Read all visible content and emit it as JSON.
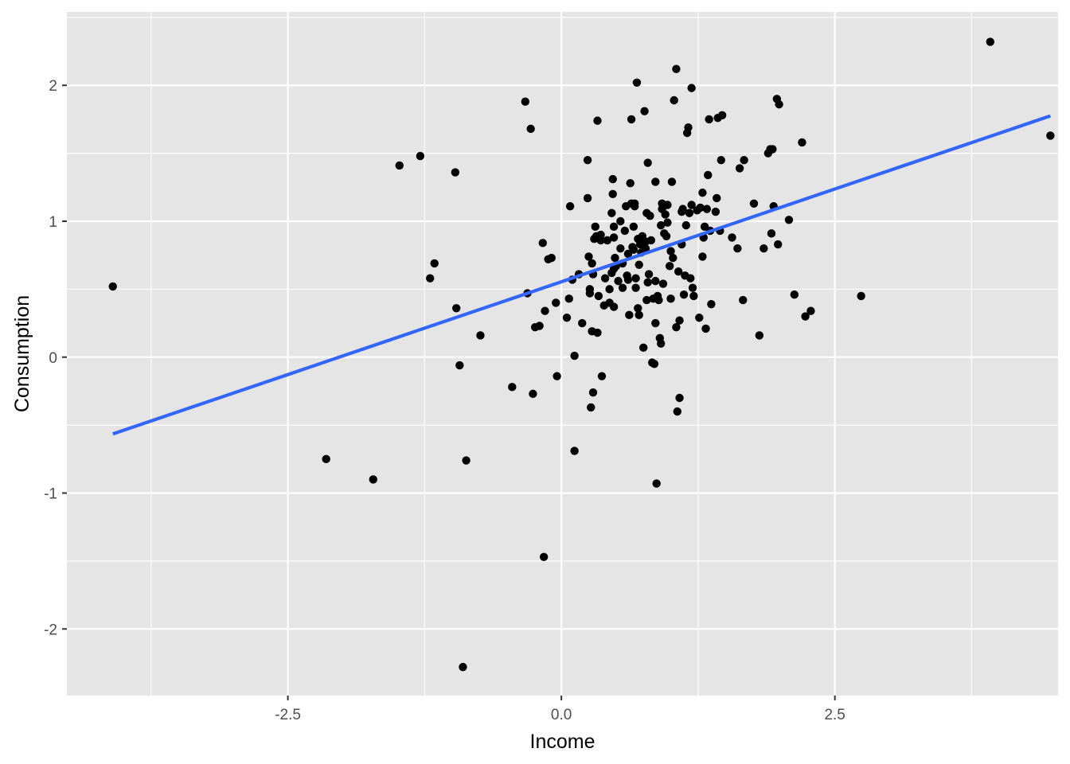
{
  "chart_data": {
    "type": "scatter",
    "title": "",
    "xlabel": "Income",
    "ylabel": "Consumption",
    "xlim": [
      -4.52,
      4.54
    ],
    "ylim": [
      -2.49,
      2.54
    ],
    "x_ticks": [
      -2.5,
      0.0,
      2.5
    ],
    "x_tick_labels": [
      "-2.5",
      "0.0",
      "2.5"
    ],
    "y_ticks": [
      -2,
      -1,
      0,
      1,
      2
    ],
    "y_tick_labels": [
      "-2",
      "-1",
      "0",
      "1",
      "2"
    ],
    "grid": true,
    "legend": "none",
    "colors": {
      "panel": "#e5e5e5",
      "grid": "#ffffff",
      "points": "#000000",
      "fit_line": "#3366ff"
    },
    "fit_line": {
      "x": [
        -4.1,
        4.47
      ],
      "y": [
        -0.565,
        1.775
      ]
    },
    "points": [
      [
        -4.1,
        0.52
      ],
      [
        -2.15,
        -0.75
      ],
      [
        -1.72,
        -0.9
      ],
      [
        -1.48,
        1.41
      ],
      [
        -1.29,
        1.48
      ],
      [
        -1.2,
        0.58
      ],
      [
        -1.16,
        0.69
      ],
      [
        -0.97,
        1.36
      ],
      [
        -0.96,
        0.36
      ],
      [
        -0.93,
        -0.06
      ],
      [
        -0.9,
        -2.28
      ],
      [
        -0.87,
        -0.76
      ],
      [
        -0.74,
        0.16
      ],
      [
        -0.45,
        -0.22
      ],
      [
        -0.33,
        1.88
      ],
      [
        -0.31,
        0.47
      ],
      [
        -0.28,
        1.68
      ],
      [
        -0.26,
        -0.27
      ],
      [
        -0.24,
        0.22
      ],
      [
        -0.2,
        0.23
      ],
      [
        -0.17,
        0.84
      ],
      [
        -0.16,
        -1.47
      ],
      [
        -0.15,
        0.34
      ],
      [
        -0.12,
        0.72
      ],
      [
        -0.09,
        0.73
      ],
      [
        -0.05,
        0.4
      ],
      [
        -0.04,
        -0.14
      ],
      [
        0.05,
        0.29
      ],
      [
        0.07,
        0.43
      ],
      [
        0.08,
        1.11
      ],
      [
        0.1,
        0.57
      ],
      [
        0.12,
        0.01
      ],
      [
        0.12,
        -0.69
      ],
      [
        0.16,
        0.61
      ],
      [
        0.19,
        0.25
      ],
      [
        0.24,
        1.17
      ],
      [
        0.24,
        1.45
      ],
      [
        0.25,
        0.74
      ],
      [
        0.26,
        0.5
      ],
      [
        0.26,
        0.47
      ],
      [
        0.27,
        -0.37
      ],
      [
        0.28,
        0.19
      ],
      [
        0.28,
        0.69
      ],
      [
        0.29,
        -0.26
      ],
      [
        0.29,
        0.61
      ],
      [
        0.3,
        0.87
      ],
      [
        0.31,
        0.96
      ],
      [
        0.32,
        0.89
      ],
      [
        0.33,
        0.18
      ],
      [
        0.33,
        1.74
      ],
      [
        0.34,
        0.45
      ],
      [
        0.36,
        0.86
      ],
      [
        0.36,
        0.9
      ],
      [
        0.37,
        -0.14
      ],
      [
        0.39,
        0.38
      ],
      [
        0.4,
        0.58
      ],
      [
        0.42,
        0.86
      ],
      [
        0.44,
        0.5
      ],
      [
        0.44,
        0.4
      ],
      [
        0.46,
        0.62
      ],
      [
        0.46,
        1.06
      ],
      [
        0.47,
        1.31
      ],
      [
        0.47,
        1.2
      ],
      [
        0.48,
        0.37
      ],
      [
        0.48,
        0.65
      ],
      [
        0.48,
        0.88
      ],
      [
        0.48,
        0.96
      ],
      [
        0.49,
        0.73
      ],
      [
        0.5,
        0.67
      ],
      [
        0.52,
        0.56
      ],
      [
        0.54,
        1.0
      ],
      [
        0.54,
        0.8
      ],
      [
        0.56,
        0.69
      ],
      [
        0.56,
        0.51
      ],
      [
        0.58,
        0.93
      ],
      [
        0.59,
        1.11
      ],
      [
        0.6,
        0.6
      ],
      [
        0.61,
        0.76
      ],
      [
        0.61,
        0.57
      ],
      [
        0.62,
        0.31
      ],
      [
        0.63,
        1.28
      ],
      [
        0.64,
        1.75
      ],
      [
        0.64,
        1.13
      ],
      [
        0.65,
        0.81
      ],
      [
        0.66,
        0.79
      ],
      [
        0.66,
        0.96
      ],
      [
        0.67,
        1.11
      ],
      [
        0.67,
        1.13
      ],
      [
        0.68,
        0.58
      ],
      [
        0.68,
        0.51
      ],
      [
        0.69,
        2.02
      ],
      [
        0.7,
        0.87
      ],
      [
        0.7,
        0.36
      ],
      [
        0.71,
        0.68
      ],
      [
        0.71,
        0.31
      ],
      [
        0.72,
        0.83
      ],
      [
        0.73,
        0.77
      ],
      [
        0.74,
        0.89
      ],
      [
        0.75,
        0.07
      ],
      [
        0.76,
        1.81
      ],
      [
        0.77,
        0.85
      ],
      [
        0.77,
        0.8
      ],
      [
        0.78,
        1.06
      ],
      [
        0.78,
        0.42
      ],
      [
        0.79,
        1.43
      ],
      [
        0.79,
        0.55
      ],
      [
        0.8,
        0.61
      ],
      [
        0.81,
        1.04
      ],
      [
        0.82,
        0.86
      ],
      [
        0.83,
        -0.04
      ],
      [
        0.84,
        0.43
      ],
      [
        0.85,
        -0.05
      ],
      [
        0.86,
        0.56
      ],
      [
        0.86,
        0.25
      ],
      [
        0.86,
        1.29
      ],
      [
        0.87,
        -0.93
      ],
      [
        0.88,
        0.45
      ],
      [
        0.89,
        0.42
      ],
      [
        0.9,
        0.14
      ],
      [
        0.91,
        0.1
      ],
      [
        0.91,
        0.97
      ],
      [
        0.92,
        1.09
      ],
      [
        0.92,
        1.13
      ],
      [
        0.93,
        0.54
      ],
      [
        0.94,
        0.91
      ],
      [
        0.95,
        1.05
      ],
      [
        0.96,
        0.89
      ],
      [
        0.97,
        0.99
      ],
      [
        0.97,
        1.12
      ],
      [
        0.99,
        0.67
      ],
      [
        1.0,
        0.78
      ],
      [
        1.0,
        0.43
      ],
      [
        1.01,
        1.29
      ],
      [
        1.02,
        0.73
      ],
      [
        1.03,
        1.89
      ],
      [
        1.05,
        0.22
      ],
      [
        1.05,
        2.12
      ],
      [
        1.06,
        -0.4
      ],
      [
        1.07,
        0.63
      ],
      [
        1.08,
        0.27
      ],
      [
        1.08,
        -0.3
      ],
      [
        1.1,
        1.07
      ],
      [
        1.1,
        0.83
      ],
      [
        1.11,
        1.09
      ],
      [
        1.12,
        0.46
      ],
      [
        1.13,
        0.6
      ],
      [
        1.14,
        0.97
      ],
      [
        1.15,
        1.65
      ],
      [
        1.16,
        1.69
      ],
      [
        1.17,
        1.06
      ],
      [
        1.18,
        0.58
      ],
      [
        1.19,
        1.12
      ],
      [
        1.19,
        1.98
      ],
      [
        1.2,
        0.51
      ],
      [
        1.21,
        0.45
      ],
      [
        1.24,
        1.08
      ],
      [
        1.26,
        0.29
      ],
      [
        1.27,
        1.1
      ],
      [
        1.29,
        1.21
      ],
      [
        1.29,
        0.74
      ],
      [
        1.3,
        0.88
      ],
      [
        1.31,
        0.96
      ],
      [
        1.32,
        0.21
      ],
      [
        1.33,
        1.09
      ],
      [
        1.34,
        1.34
      ],
      [
        1.35,
        1.75
      ],
      [
        1.36,
        0.93
      ],
      [
        1.37,
        0.39
      ],
      [
        1.41,
        1.07
      ],
      [
        1.42,
        1.17
      ],
      [
        1.43,
        1.76
      ],
      [
        1.45,
        0.93
      ],
      [
        1.46,
        1.45
      ],
      [
        1.47,
        1.78
      ],
      [
        1.56,
        0.88
      ],
      [
        1.61,
        0.8
      ],
      [
        1.63,
        1.39
      ],
      [
        1.66,
        0.42
      ],
      [
        1.67,
        1.45
      ],
      [
        1.76,
        1.13
      ],
      [
        1.81,
        0.16
      ],
      [
        1.85,
        0.8
      ],
      [
        1.89,
        1.5
      ],
      [
        1.91,
        1.53
      ],
      [
        1.92,
        0.91
      ],
      [
        1.93,
        1.53
      ],
      [
        1.94,
        1.11
      ],
      [
        1.97,
        1.9
      ],
      [
        1.98,
        0.83
      ],
      [
        1.99,
        1.86
      ],
      [
        2.08,
        1.01
      ],
      [
        2.13,
        0.46
      ],
      [
        2.2,
        1.58
      ],
      [
        2.23,
        0.3
      ],
      [
        2.28,
        0.34
      ],
      [
        2.74,
        0.45
      ],
      [
        3.92,
        2.32
      ],
      [
        4.47,
        1.63
      ]
    ]
  }
}
